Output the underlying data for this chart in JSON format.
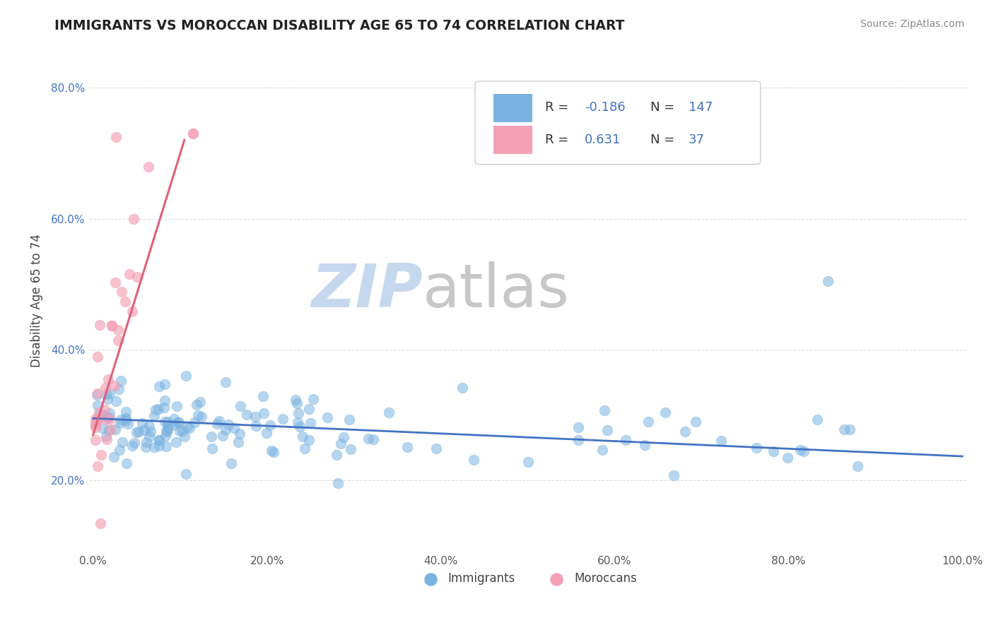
{
  "title": "IMMIGRANTS VS MOROCCAN DISABILITY AGE 65 TO 74 CORRELATION CHART",
  "source_text": "Source: ZipAtlas.com",
  "ylabel": "Disability Age 65 to 74",
  "xlim": [
    -0.005,
    1.005
  ],
  "ylim": [
    0.09,
    0.86
  ],
  "xticks": [
    0.0,
    0.2,
    0.4,
    0.6,
    0.8,
    1.0
  ],
  "xticklabels": [
    "0.0%",
    "20.0%",
    "40.0%",
    "60.0%",
    "80.0%",
    "100.0%"
  ],
  "yticks": [
    0.2,
    0.4,
    0.6,
    0.8
  ],
  "yticklabels": [
    "20.0%",
    "40.0%",
    "60.0%",
    "80.0%"
  ],
  "immigrants_color": "#7ab3e0",
  "moroccans_color": "#f4a0b5",
  "trend_blue": "#4472c4",
  "trend_pink": "#e0607a",
  "watermark_zip": "ZIP",
  "watermark_atlas": "atlas",
  "watermark_color_zip": "#c5d8ee",
  "watermark_color_atlas": "#c5c8c5",
  "grid_color": "#d8d8d8",
  "background_color": "#ffffff",
  "legend_box_color": "#ffffff",
  "legend_border_color": "#cccccc",
  "r_value_color": "#4472c4",
  "n_value_color": "#4472c4",
  "label_color": "#555555",
  "title_color": "#222222",
  "source_color": "#888888",
  "imm_R": -0.186,
  "imm_N": 147,
  "mor_R": 0.631,
  "mor_N": 37,
  "imm_trend_x0": 0.0,
  "imm_trend_x1": 1.0,
  "imm_trend_y0": 0.295,
  "imm_trend_y1": 0.237,
  "mor_trend_x0": 0.0,
  "mor_trend_x1": 0.105,
  "mor_trend_y0": 0.27,
  "mor_trend_y1": 0.72
}
